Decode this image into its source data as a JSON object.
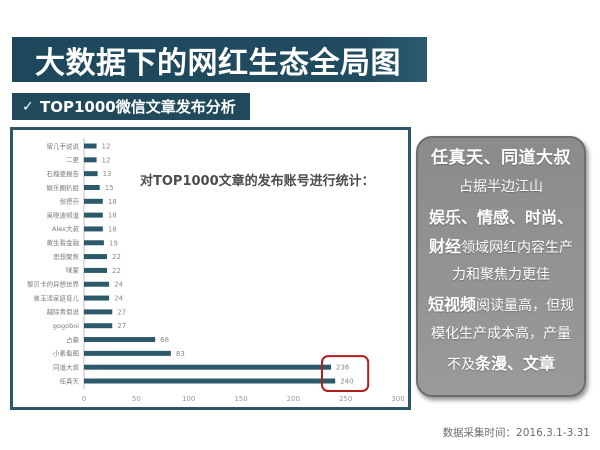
{
  "slide": {
    "title": "大数据下的网红生态全局图",
    "subtitle_check": "✓",
    "subtitle": "TOP1000微信文章发布分析",
    "footer": "数据采集时间：2016.3.1-3.31"
  },
  "colors": {
    "banner": "#1f4a5d",
    "frame": "#2d5666",
    "bar": "#2c5a6b",
    "highlight": "#b11e1e",
    "panel": "#939393",
    "panel_text": "#ffffff"
  },
  "summary_panel": {
    "lines": [
      [
        "任真天、同道大叔"
      ],
      [
        "占据半边江山"
      ],
      [
        "娱乐、情感、时尚、"
      ],
      [
        "财经",
        "领域网红内容生产"
      ],
      [
        "力和聚焦力更佳"
      ],
      [
        "短视频",
        "阅读量高，但规"
      ],
      [
        "模化生产成本高，产量"
      ],
      [
        "不及",
        "条漫、文章"
      ]
    ]
  },
  "chart_data": {
    "type": "bar",
    "orientation": "horizontal",
    "annotation": "对TOP1000文章的发布账号进行统计：",
    "categories": [
      "留几手说说",
      "二更",
      "石榴婆报告",
      "娱乐圈扒姐",
      "张德芬",
      "吴晓波频道",
      "Alex大叔",
      "黄生看金融",
      "思想聚焦",
      "咪蒙",
      "黎贝卡的异想世界",
      "崔玉涛家庭育儿",
      "越除青假说",
      "gogoboi",
      "占豪",
      "小素看图",
      "同道大叔",
      "任真天"
    ],
    "values": [
      12,
      12,
      13,
      15,
      18,
      18,
      18,
      19,
      22,
      22,
      24,
      24,
      27,
      27,
      68,
      83,
      236,
      240
    ],
    "xticks": [
      0,
      50,
      100,
      150,
      200,
      250,
      300
    ],
    "xlim": [
      0,
      300
    ],
    "grid": false,
    "highlight_indices": [
      16,
      17
    ]
  }
}
